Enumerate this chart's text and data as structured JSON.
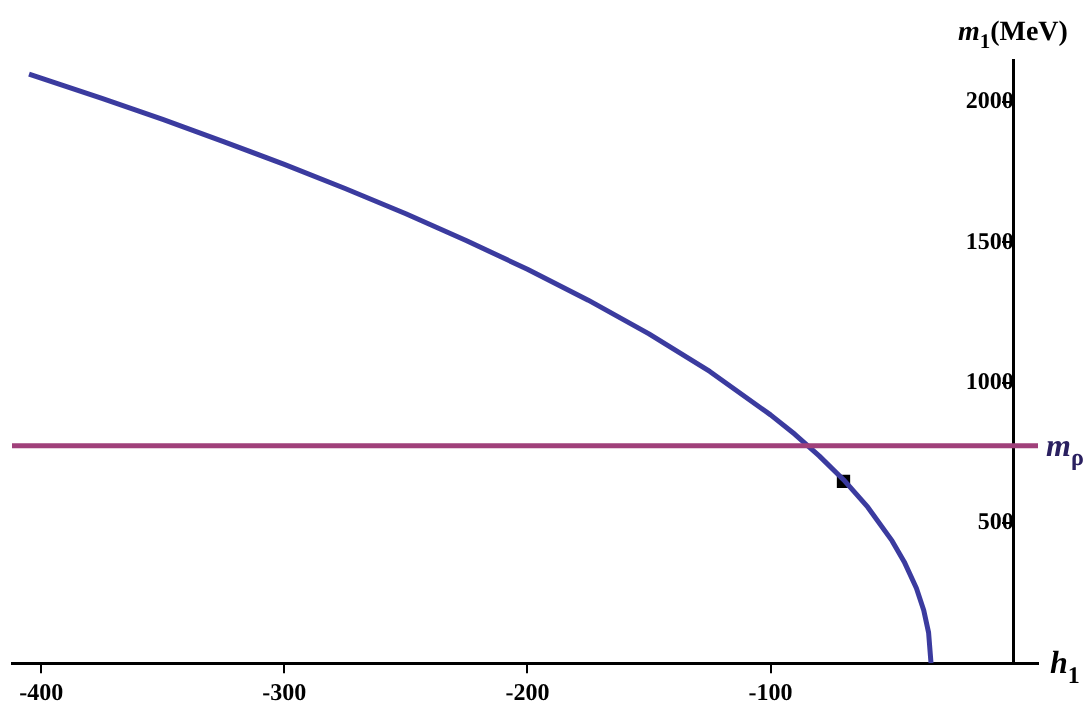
{
  "chart_data": {
    "type": "line",
    "xlabel": "h$_{1}$",
    "ylabel": "m$_{1}$(MeV)",
    "xlim": [
      -412,
      10
    ],
    "ylim": [
      0,
      2150
    ],
    "xticks": [
      -400,
      -300,
      -200,
      -100
    ],
    "yticks": [
      500,
      1000,
      1500,
      2000
    ],
    "grid": false,
    "legend": false,
    "series": [
      {
        "color": "#3b3b9f",
        "marker": "none",
        "x": [
          -405,
          -375,
          -350,
          -325,
          -300,
          -275,
          -250,
          -225,
          -200,
          -175,
          -150,
          -125,
          -100,
          -90,
          -80,
          -70,
          -60,
          -50,
          -45,
          -40,
          -37,
          -35,
          -34
        ],
        "values": [
          2100,
          2013,
          1938,
          1859,
          1778,
          1692,
          1602,
          1506,
          1404,
          1294,
          1174,
          1040,
          885,
          816,
          739,
          654,
          556,
          436,
          361,
          267,
          189,
          109,
          0
        ]
      },
      {
        "type": "scatter",
        "color": "#000000",
        "marker": "square",
        "x": [
          -70
        ],
        "values": [
          648
        ]
      }
    ],
    "ref_lines": [
      {
        "axis": "y",
        "value": 775,
        "label": "m$_{ρ}$",
        "color": "#a0407a"
      }
    ]
  }
}
